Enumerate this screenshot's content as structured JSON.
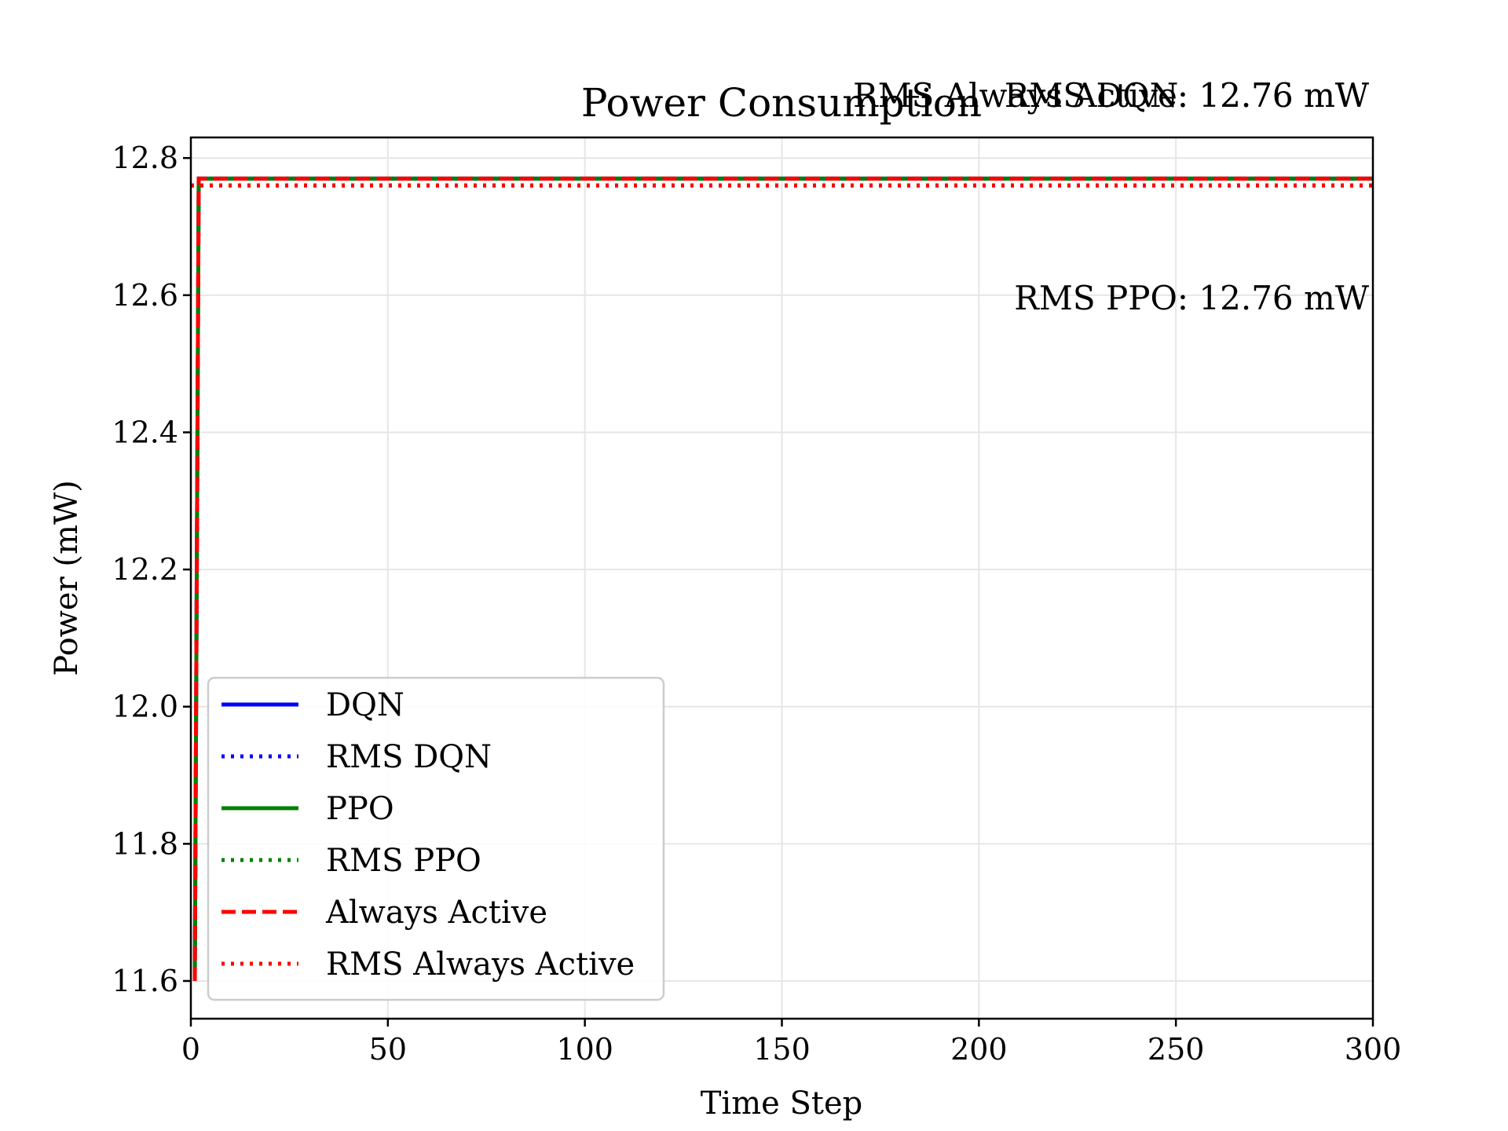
{
  "chart_data": {
    "type": "line",
    "title": "Power Consumption",
    "xlabel": "Time Step",
    "ylabel": "Power (mW)",
    "xlim": [
      0,
      300
    ],
    "ylim": [
      11.545,
      12.83
    ],
    "xticks": [
      0,
      50,
      100,
      150,
      200,
      250,
      300
    ],
    "yticks": [
      11.6,
      11.8,
      12.0,
      12.2,
      12.4,
      12.6,
      12.8
    ],
    "xtick_labels": [
      "0",
      "50",
      "100",
      "150",
      "200",
      "250",
      "300"
    ],
    "ytick_labels": [
      "11.6",
      "11.8",
      "12.0",
      "12.2",
      "12.4",
      "12.6",
      "12.8"
    ],
    "grid": true,
    "legend_position": "lower-left",
    "series": [
      {
        "name": "DQN",
        "color": "#0000ff",
        "style": "solid",
        "x": [
          1,
          2,
          300
        ],
        "y": [
          11.6,
          12.77,
          12.77
        ]
      },
      {
        "name": "RMS DQN",
        "color": "#0000ff",
        "style": "dotted",
        "x": [
          0,
          300
        ],
        "y": [
          12.76,
          12.76
        ]
      },
      {
        "name": "PPO",
        "color": "#008000",
        "style": "solid",
        "x": [
          1,
          2,
          300
        ],
        "y": [
          11.6,
          12.77,
          12.77
        ]
      },
      {
        "name": "RMS PPO",
        "color": "#008000",
        "style": "dotted",
        "x": [
          0,
          300
        ],
        "y": [
          12.76,
          12.76
        ]
      },
      {
        "name": "Always Active",
        "color": "#ff0000",
        "style": "dashed",
        "x": [
          1,
          2,
          300
        ],
        "y": [
          11.6,
          12.77,
          12.77
        ]
      },
      {
        "name": "RMS Always Active",
        "color": "#ff0000",
        "style": "dotted",
        "x": [
          0,
          300
        ],
        "y": [
          12.76,
          12.76
        ]
      }
    ],
    "annotations": [
      {
        "text": "RMS DQN: 12.76 mW"
      },
      {
        "text": "RMS PPO: 12.76 mW"
      },
      {
        "text": "RMS Always Active: 12.76 mW"
      }
    ]
  }
}
